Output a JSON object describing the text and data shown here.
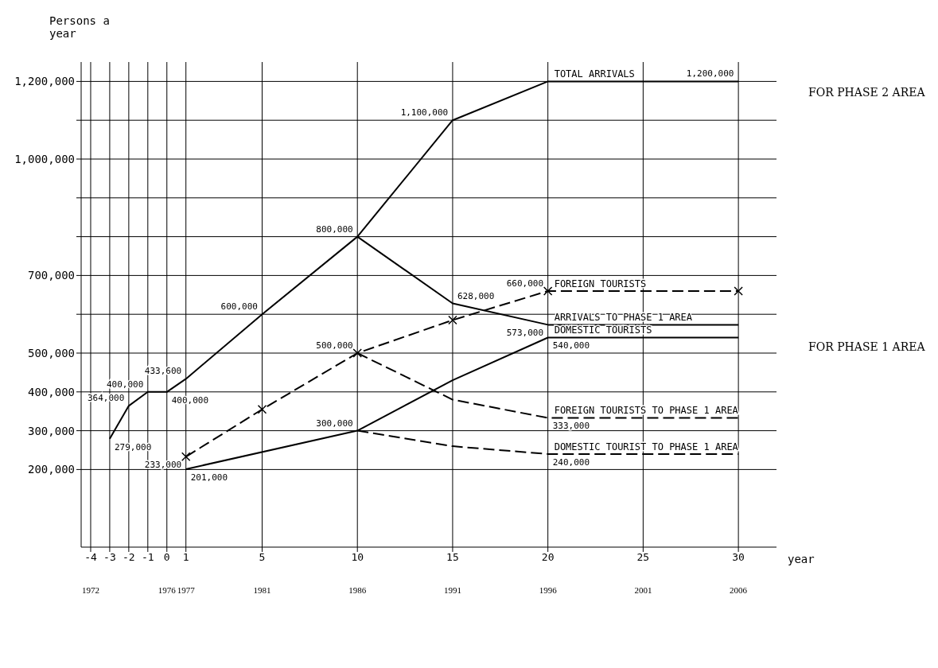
{
  "chart_data": {
    "type": "line",
    "ylabel": "Persons a year",
    "xlabel": "year",
    "xlim": [
      -4.5,
      32
    ],
    "xticks": [
      -4,
      -3,
      -2,
      -1,
      0,
      1,
      5,
      10,
      15,
      20,
      25,
      30
    ],
    "x2lim": [
      1971.5,
      2008
    ],
    "x2ticks": [
      1972,
      1976,
      1977,
      1981,
      1986,
      1991,
      1996,
      2001,
      2006
    ],
    "ylim": [
      0,
      1250000
    ],
    "yticks": [
      {
        "value": 200000,
        "label": "200,000"
      },
      {
        "value": 300000,
        "label": "300,000"
      },
      {
        "value": 400000,
        "label": "400,000"
      },
      {
        "value": 500000,
        "label": "500,000"
      },
      {
        "value": 600000,
        "label": null
      },
      {
        "value": 700000,
        "label": "700,000"
      },
      {
        "value": 800000,
        "label": null
      },
      {
        "value": 900000,
        "label": null
      },
      {
        "value": 1000000,
        "label": "1,000,000"
      },
      {
        "value": 1100000,
        "label": null
      },
      {
        "value": 1200000,
        "label": "1,200,000"
      }
    ],
    "grid": true,
    "line_style": "solid",
    "series": [
      {
        "name": "TOTAL ARRIVALS",
        "color": "#000000",
        "x": [
          -3,
          -2,
          -1,
          0,
          1,
          5,
          10,
          15,
          20,
          30
        ],
        "values": [
          279000,
          364000,
          400000,
          400000,
          433600,
          600000,
          800000,
          1100000,
          1200000,
          1200000
        ],
        "value_labels": [
          "279,000",
          "364,000",
          "400,000",
          "400,000",
          "433,600",
          "600,000",
          "800,000",
          "1,100,000",
          null,
          "1,200,000"
        ]
      },
      {
        "name": "ARRIVALS TO PHASE 1 AREA",
        "color": "#000000",
        "x": [
          10,
          15,
          20,
          30
        ],
        "values": [
          800000,
          628000,
          573000,
          573000
        ],
        "value_labels": [
          null,
          "628,000",
          "573,000",
          null
        ]
      },
      {
        "name": "FOREIGN TOURISTS",
        "color": "#000000",
        "line_style": "dashed",
        "marker": "cross",
        "x": [
          1,
          5,
          10,
          15,
          20,
          30
        ],
        "values": [
          233000,
          355000,
          500000,
          585000,
          660000,
          660000
        ],
        "value_labels": [
          "233,000",
          null,
          "500,000",
          null,
          "660,000",
          null
        ]
      },
      {
        "name": "DOMESTIC TOURISTS",
        "color": "#000000",
        "x": [
          1,
          10,
          15,
          20,
          30
        ],
        "values": [
          201000,
          300000,
          430000,
          540000,
          540000
        ],
        "value_labels": [
          "201,000",
          "300,000",
          null,
          "540,000",
          null
        ]
      },
      {
        "name": "FOREIGN TOURISTS TO PHASE 1 AREA",
        "color": "#000000",
        "line_style": "dashed",
        "x": [
          10,
          15,
          20,
          30
        ],
        "values": [
          500000,
          380000,
          333000,
          333000
        ],
        "value_labels": [
          null,
          null,
          "333,000",
          null
        ]
      },
      {
        "name": "DOMESTIC TOURIST TO PHASE 1 AREA",
        "color": "#000000",
        "line_style": "dashed",
        "x": [
          10,
          15,
          20,
          30
        ],
        "values": [
          300000,
          260000,
          240000,
          240000
        ],
        "value_labels": [
          null,
          null,
          "240,000",
          null
        ]
      }
    ],
    "annotations": [
      "FOR PHASE 2 AREA",
      "FOR PHASE 1 AREA"
    ]
  }
}
